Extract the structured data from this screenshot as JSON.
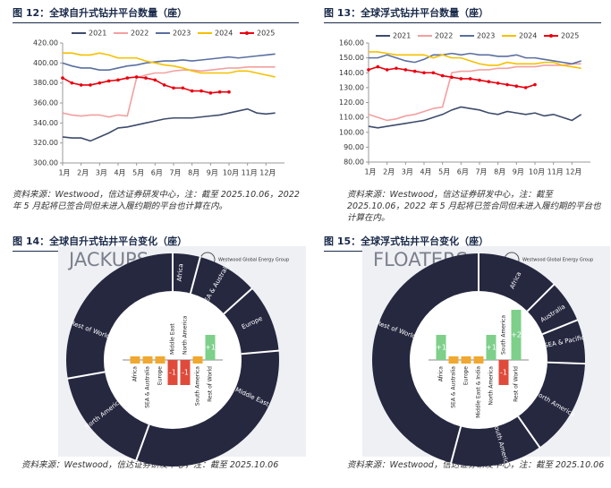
{
  "figures": [
    {
      "caption": "图 12：全球自升式钻井平台数量（座）",
      "source": "资料来源：Westwood，信达证券研发中心，注：截至 2025.10.06，2022 年 5 月起将已签合同但未进入履约期的平台也计算在内。"
    },
    {
      "caption": "图 13：全球浮式钻井平台数量（座）",
      "source": "资料来源：Westwood，信达证券研发中心，注：截至 2025.10.06，2022 年 5 月起将已签合同但未进入履约期的平台也计算在内。"
    },
    {
      "caption": "图 14：全球自升式钻井平台变化（座）",
      "source": "资料来源：Westwood，信达证券研发中心，注：截至 2025.10.06"
    },
    {
      "caption": "图 15：全球浮式钻井平台变化（座）",
      "source": "资料来源：Westwood，信达证券研发中心，注：截至 2025.10.06"
    }
  ],
  "chart_data": [
    {
      "type": "line",
      "x": [
        1,
        1.5,
        2,
        2.5,
        3,
        3.5,
        4,
        4.5,
        5,
        5.5,
        6,
        6.5,
        7,
        7.5,
        8,
        8.5,
        9,
        9.5,
        10,
        10.5,
        11,
        11.5,
        12,
        12.5
      ],
      "xlim": [
        1,
        13
      ],
      "xticks": [
        {
          "value": 1,
          "label": "1月"
        },
        {
          "value": 2,
          "label": "2月"
        },
        {
          "value": 3,
          "label": "3月"
        },
        {
          "value": 4,
          "label": "4月"
        },
        {
          "value": 5,
          "label": "5月"
        },
        {
          "value": 6,
          "label": "6月"
        },
        {
          "value": 7,
          "label": "7月"
        },
        {
          "value": 8,
          "label": "8月"
        },
        {
          "value": 9,
          "label": "9月"
        },
        {
          "value": 10,
          "label": "10月"
        },
        {
          "value": 11,
          "label": "11月"
        },
        {
          "value": 12,
          "label": "12月"
        }
      ],
      "ylim": [
        300,
        420
      ],
      "yticks": [
        {
          "value": 300,
          "label": "300.00"
        },
        {
          "value": 320,
          "label": "320.00"
        },
        {
          "value": 340,
          "label": "340.00"
        },
        {
          "value": 360,
          "label": "360.00"
        },
        {
          "value": 380,
          "label": "380.00"
        },
        {
          "value": 400,
          "label": "400.00"
        },
        {
          "value": 420,
          "label": "420.00"
        }
      ],
      "series": [
        {
          "name": "2021",
          "color": "#3d4b6b",
          "values": [
            326,
            325,
            325,
            322,
            326,
            330,
            335,
            336,
            338,
            340,
            342,
            344,
            345,
            345,
            345,
            346,
            347,
            348,
            350,
            352,
            354,
            350,
            349,
            350
          ]
        },
        {
          "name": "2022",
          "color": "#f2a0a0",
          "values": [
            350,
            348,
            347,
            348,
            348,
            346,
            348,
            347,
            385,
            388,
            390,
            390,
            392,
            393,
            393,
            392,
            393,
            394,
            395,
            395,
            396,
            396,
            396,
            396
          ]
        },
        {
          "name": "2023",
          "color": "#5a6fa0",
          "values": [
            400,
            397,
            395,
            395,
            393,
            393,
            395,
            397,
            398,
            400,
            401,
            402,
            402,
            403,
            402,
            403,
            404,
            405,
            406,
            405,
            406,
            407,
            408,
            409
          ]
        },
        {
          "name": "2024",
          "color": "#f5c000",
          "values": [
            410,
            410,
            408,
            408,
            410,
            408,
            405,
            405,
            405,
            402,
            400,
            398,
            397,
            395,
            392,
            390,
            390,
            390,
            390,
            392,
            392,
            390,
            388,
            386
          ]
        },
        {
          "name": "2025",
          "color": "#e8000f",
          "marker": true,
          "values": [
            385,
            380,
            378,
            378,
            380,
            382,
            383,
            385,
            386,
            385,
            383,
            378,
            375,
            375,
            372,
            372,
            370,
            371,
            371,
            null,
            null,
            null,
            null,
            null
          ]
        }
      ]
    },
    {
      "type": "line",
      "x": [
        1,
        1.5,
        2,
        2.5,
        3,
        3.5,
        4,
        4.5,
        5,
        5.5,
        6,
        6.5,
        7,
        7.5,
        8,
        8.5,
        9,
        9.5,
        10,
        10.5,
        11,
        11.5,
        12,
        12.5
      ],
      "xlim": [
        1,
        13
      ],
      "xticks": [
        {
          "value": 1,
          "label": "1月"
        },
        {
          "value": 2,
          "label": "2月"
        },
        {
          "value": 3,
          "label": "3月"
        },
        {
          "value": 4,
          "label": "4月"
        },
        {
          "value": 5,
          "label": "5月"
        },
        {
          "value": 6,
          "label": "6月"
        },
        {
          "value": 7,
          "label": "7月"
        },
        {
          "value": 8,
          "label": "8月"
        },
        {
          "value": 9,
          "label": "9月"
        },
        {
          "value": 10,
          "label": "10月"
        },
        {
          "value": 11,
          "label": "11月"
        },
        {
          "value": 12,
          "label": "12月"
        }
      ],
      "ylim": [
        80,
        160
      ],
      "yticks": [
        {
          "value": 80,
          "label": "80.00"
        },
        {
          "value": 90,
          "label": "90.00"
        },
        {
          "value": 100,
          "label": "100.00"
        },
        {
          "value": 110,
          "label": "110.00"
        },
        {
          "value": 120,
          "label": "120.00"
        },
        {
          "value": 130,
          "label": "130.00"
        },
        {
          "value": 140,
          "label": "140.00"
        },
        {
          "value": 150,
          "label": "150.00"
        },
        {
          "value": 160,
          "label": "160.00"
        }
      ],
      "series": [
        {
          "name": "2021",
          "color": "#3d4b6b",
          "values": [
            104,
            103,
            104,
            105,
            106,
            107,
            108,
            110,
            112,
            115,
            117,
            116,
            115,
            113,
            112,
            114,
            113,
            112,
            113,
            111,
            112,
            110,
            108,
            112
          ]
        },
        {
          "name": "2022",
          "color": "#f2a0a0",
          "values": [
            112,
            110,
            108,
            109,
            111,
            112,
            114,
            116,
            117,
            140,
            141,
            141,
            142,
            142,
            143,
            143,
            144,
            144,
            144,
            145,
            145,
            145,
            146,
            146
          ]
        },
        {
          "name": "2023",
          "color": "#5a6fa0",
          "values": [
            150,
            150,
            152,
            150,
            148,
            147,
            149,
            152,
            152,
            153,
            152,
            153,
            152,
            152,
            151,
            151,
            152,
            150,
            150,
            149,
            148,
            147,
            146,
            148
          ]
        },
        {
          "name": "2024",
          "color": "#f5c000",
          "values": [
            154,
            154,
            153,
            152,
            152,
            152,
            152,
            150,
            152,
            150,
            150,
            148,
            146,
            145,
            145,
            147,
            146,
            146,
            146,
            147,
            147,
            145,
            144,
            143
          ]
        },
        {
          "name": "2025",
          "color": "#e8000f",
          "marker": true,
          "values": [
            142,
            144,
            142,
            143,
            142,
            141,
            140,
            140,
            138,
            137,
            136,
            136,
            135,
            134,
            133,
            132,
            131,
            130,
            132,
            null,
            null,
            null,
            null,
            null
          ]
        }
      ]
    },
    {
      "type": "bar",
      "title": "JACKUPS",
      "brand": "Westwood Global Energy Group",
      "ring_labels": [
        "Africa",
        "SEA & Australia",
        "Europe",
        "Middle East",
        "North America",
        "Rest of World"
      ],
      "categories": [
        "Africa",
        "SEA & Australia",
        "Europe",
        "Middle East",
        "North America",
        "South America",
        "Rest of World"
      ],
      "values": [
        0,
        0,
        0,
        -1,
        -1,
        0,
        1
      ],
      "value_labels": [
        null,
        null,
        null,
        "-1",
        "-1",
        null,
        "+1"
      ],
      "colors": {
        "positive": "#7dcf8a",
        "negative": "#e04a3a",
        "zero": "#f0a830"
      }
    },
    {
      "type": "bar",
      "title": "FLOATERS",
      "brand": "Westwood Global Energy Group",
      "ring_labels": [
        "Africa",
        "Australia",
        "SEA & Pacific",
        "North America",
        "South America",
        "Rest of World"
      ],
      "categories": [
        "Africa",
        "SEA & Australia",
        "Europe",
        "Middle East & India",
        "North America",
        "South America",
        "Rest of World"
      ],
      "values": [
        1,
        0,
        0,
        0,
        1,
        -1,
        2
      ],
      "value_labels": [
        "+1",
        null,
        null,
        null,
        "+1",
        "-1",
        "+2"
      ],
      "colors": {
        "positive": "#7dcf8a",
        "negative": "#e04a3a",
        "zero": "#f0a830"
      }
    }
  ]
}
